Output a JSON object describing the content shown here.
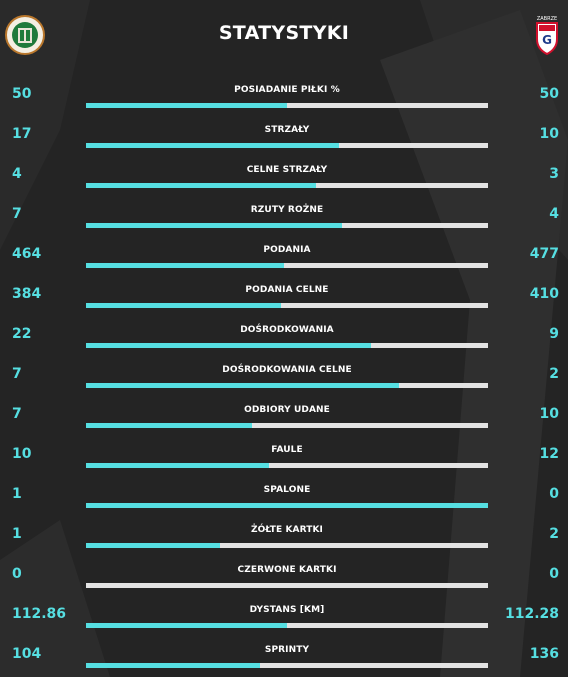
{
  "title": "STATYSTYKI",
  "colors": {
    "accent": "#56dfe2",
    "track": "#e3e3e3",
    "background": "#242424"
  },
  "teams": {
    "home": {
      "logo_icon": "zaglebie-lubin-crest-icon"
    },
    "away": {
      "logo_icon": "gornik-zabrze-crest-icon",
      "logo_text": "ZABRZE"
    }
  },
  "stats": [
    {
      "label": "POSIADANIE PIŁKI %",
      "home": "50",
      "away": "50",
      "home_share": 0.5
    },
    {
      "label": "STRZAŁY",
      "home": "17",
      "away": "10",
      "home_share": 0.63
    },
    {
      "label": "CELNE STRZAŁY",
      "home": "4",
      "away": "3",
      "home_share": 0.571
    },
    {
      "label": "RZUTY ROŻNE",
      "home": "7",
      "away": "4",
      "home_share": 0.636
    },
    {
      "label": "PODANIA",
      "home": "464",
      "away": "477",
      "home_share": 0.493
    },
    {
      "label": "PODANIA CELNE",
      "home": "384",
      "away": "410",
      "home_share": 0.484
    },
    {
      "label": "DOŚRODKOWANIA",
      "home": "22",
      "away": "9",
      "home_share": 0.71
    },
    {
      "label": "DOŚRODKOWANIA CELNE",
      "home": "7",
      "away": "2",
      "home_share": 0.778
    },
    {
      "label": "ODBIORY UDANE",
      "home": "7",
      "away": "10",
      "home_share": 0.412
    },
    {
      "label": "FAULE",
      "home": "10",
      "away": "12",
      "home_share": 0.455
    },
    {
      "label": "SPALONE",
      "home": "1",
      "away": "0",
      "home_share": 1.0
    },
    {
      "label": "ŻÓŁTE KARTKI",
      "home": "1",
      "away": "2",
      "home_share": 0.333
    },
    {
      "label": "CZERWONE KARTKI",
      "home": "0",
      "away": "0",
      "home_share": 0.0
    },
    {
      "label": "DYSTANS [KM]",
      "home": "112.86",
      "away": "112.28",
      "home_share": 0.501
    },
    {
      "label": "SPRINTY",
      "home": "104",
      "away": "136",
      "home_share": 0.433
    }
  ]
}
